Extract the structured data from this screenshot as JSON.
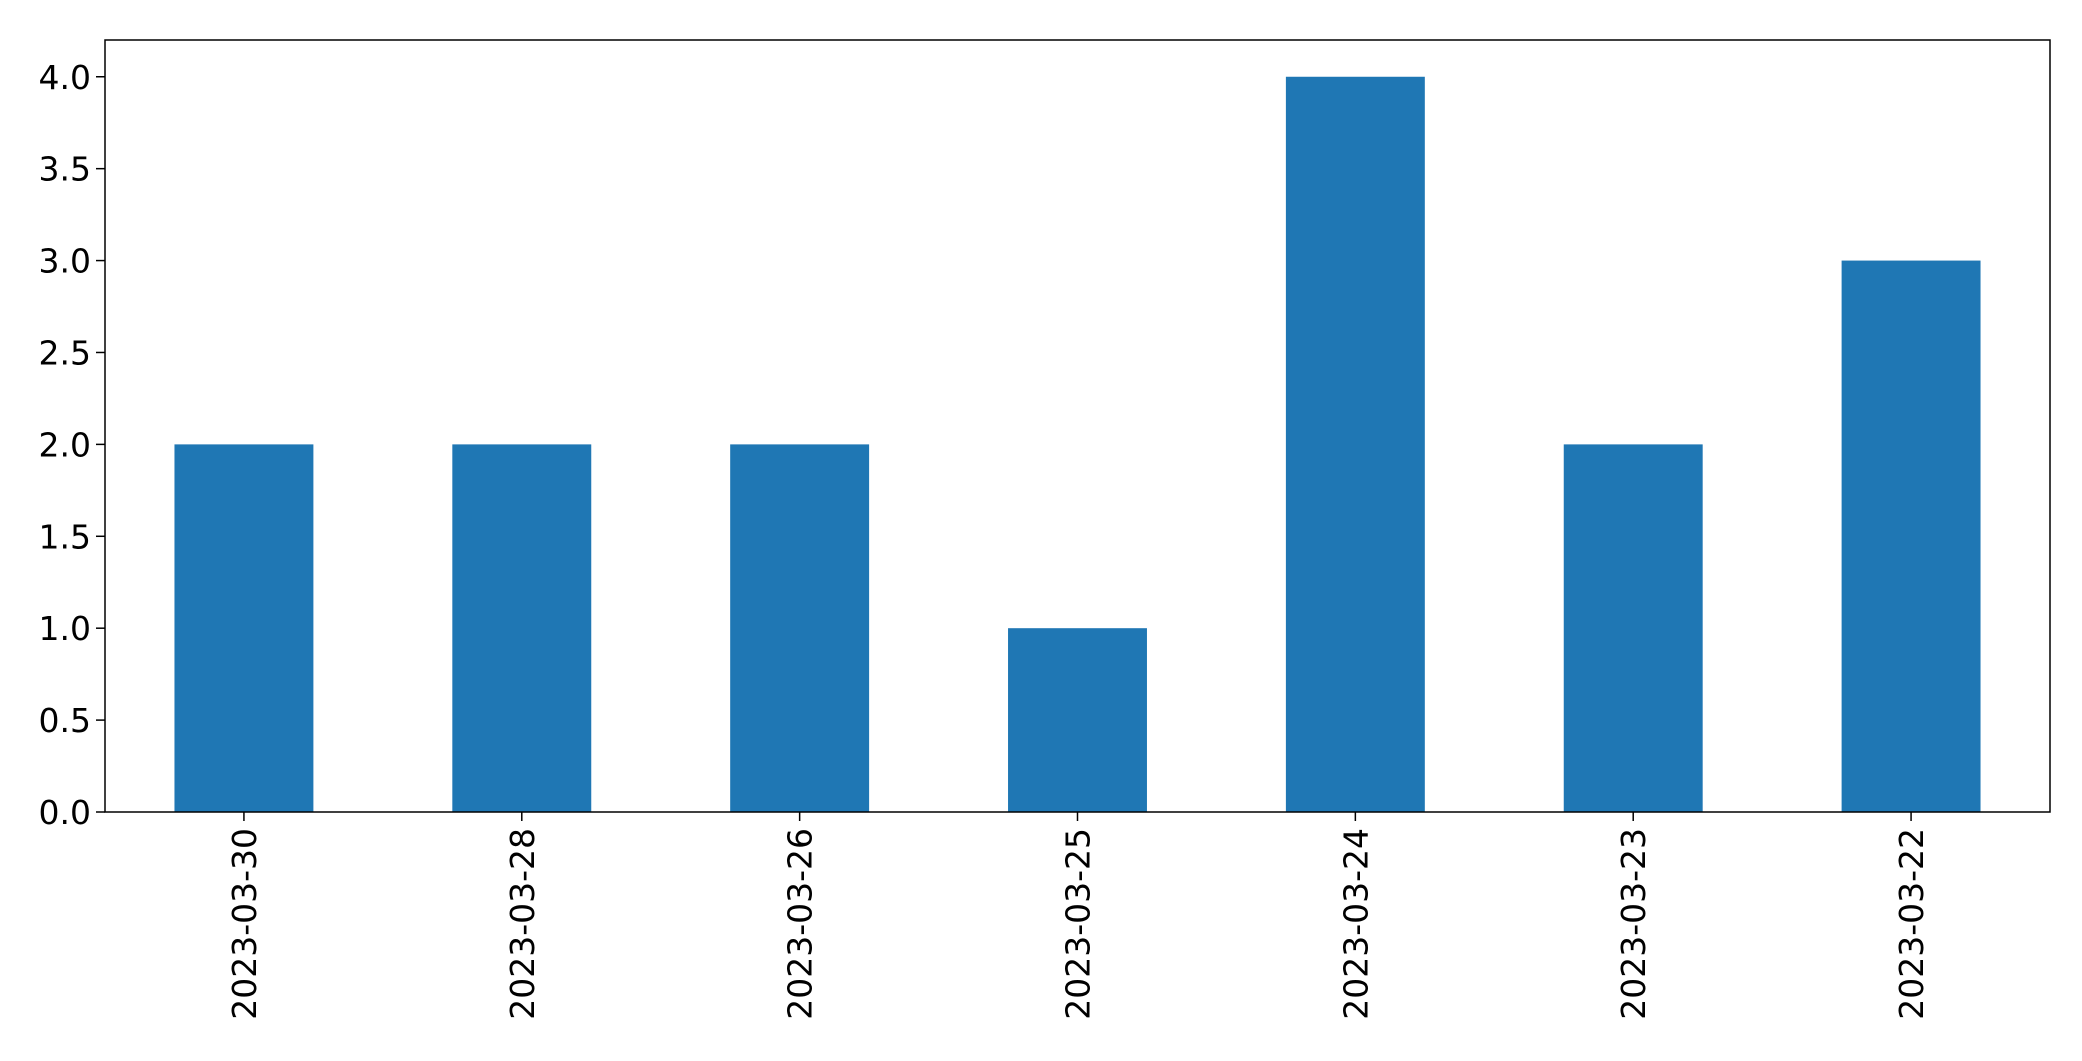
{
  "chart_data": {
    "type": "bar",
    "title": "",
    "xlabel": "",
    "ylabel": "",
    "categories": [
      "2023-03-30",
      "2023-03-28",
      "2023-03-26",
      "2023-03-25",
      "2023-03-24",
      "2023-03-23",
      "2023-03-22"
    ],
    "values": [
      2,
      2,
      2,
      1,
      4,
      2,
      3
    ],
    "ylim": [
      0,
      4.2
    ],
    "yticks": [
      "0.0",
      "0.5",
      "1.0",
      "1.5",
      "2.0",
      "2.5",
      "3.0",
      "3.5",
      "4.0"
    ],
    "x_tick_rotation": "vertical",
    "grid": false,
    "legend": "none",
    "bar_color": "#1f77b4"
  }
}
